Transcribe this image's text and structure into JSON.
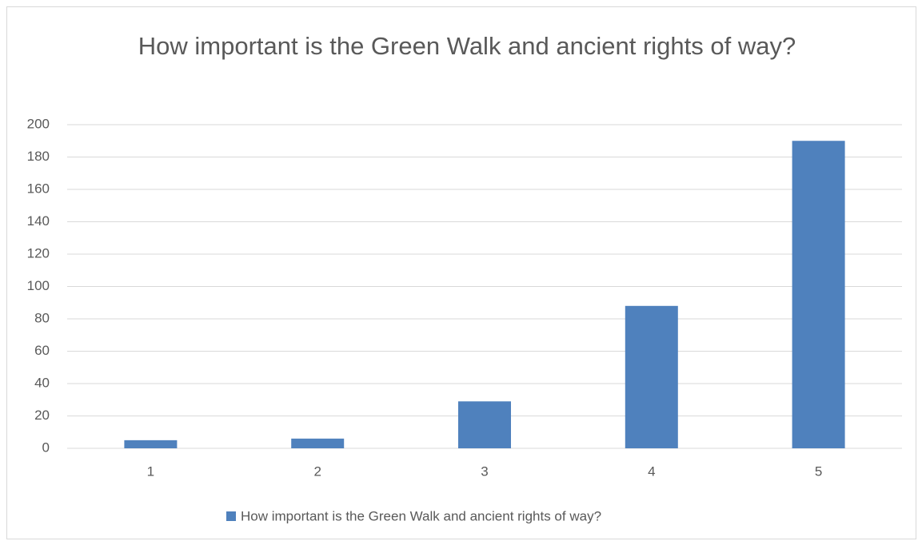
{
  "chart_data": {
    "type": "bar",
    "title": "How important is the Green Walk and ancient rights of way?",
    "categories": [
      "1",
      "2",
      "3",
      "4",
      "5"
    ],
    "series": [
      {
        "name": "How important is the Green Walk and ancient rights of way?",
        "color": "#4f81bd",
        "values": [
          5,
          6,
          29,
          88,
          190
        ]
      }
    ],
    "ylim": [
      0,
      200
    ],
    "yticks": [
      0,
      20,
      40,
      60,
      80,
      100,
      120,
      140,
      160,
      180,
      200
    ],
    "grid": true,
    "legend": "bottom"
  }
}
